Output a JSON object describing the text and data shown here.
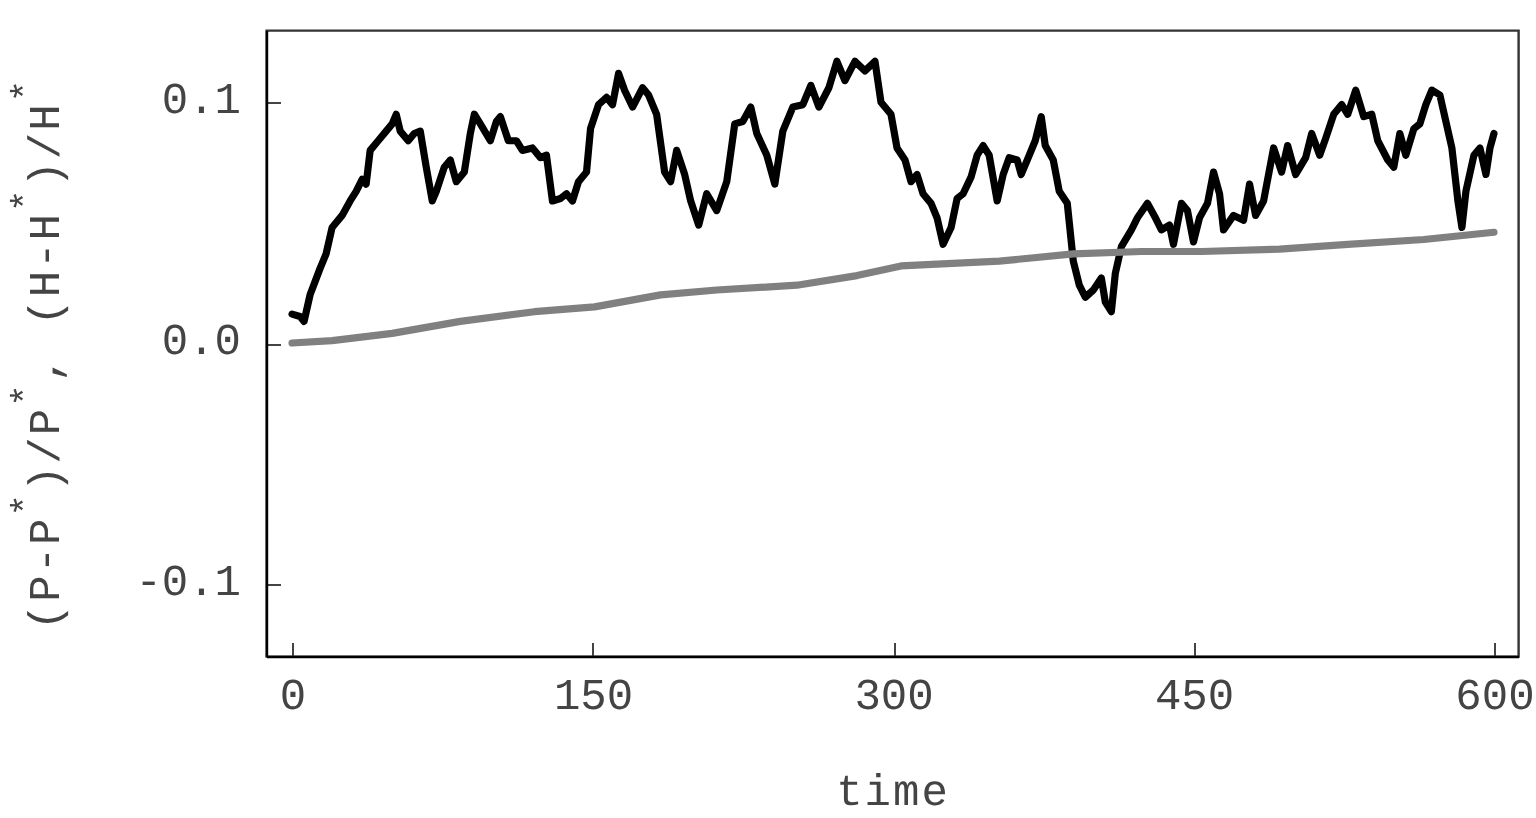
{
  "chart_data": {
    "type": "line",
    "xlabel": "time",
    "ylabel": "(P-P$^{*}$)/P$^{*}$, (H-H$^{*}$)/H$^{*}$",
    "xlim": [
      -13,
      612
    ],
    "ylim": [
      -0.13,
      0.13
    ],
    "xticks": [
      0,
      150,
      300,
      450,
      600
    ],
    "yticks": [
      -0.1,
      {
        "value": 0,
        "label": "0.0"
      },
      0.1
    ],
    "series": [
      {
        "color": "#000000",
        "x": [
          0,
          4,
          6,
          9,
          14,
          17,
          20,
          25,
          29,
          32,
          35,
          37,
          39,
          43,
          47,
          50,
          52,
          54,
          58,
          61,
          64,
          67,
          70,
          72,
          76,
          79,
          82,
          86,
          89,
          91,
          94,
          99,
          102,
          104,
          108,
          112,
          115,
          120,
          124,
          127,
          130,
          134,
          137,
          140,
          143,
          147,
          149,
          153,
          157,
          160,
          163,
          166,
          170,
          175,
          178,
          182,
          186,
          189,
          192,
          196,
          199,
          203,
          207,
          212,
          217,
          221,
          225,
          229,
          232,
          237,
          241,
          245,
          250,
          255,
          259,
          263,
          268,
          272,
          276,
          281,
          286,
          291,
          294,
          299,
          302,
          306,
          309,
          312,
          315,
          319,
          322,
          325,
          329,
          332,
          335,
          339,
          342,
          345,
          348,
          352,
          355,
          358,
          362,
          364,
          367,
          371,
          374,
          376,
          380,
          383,
          387,
          390,
          393,
          396,
          400,
          404,
          406,
          409,
          411,
          414,
          419,
          422,
          427,
          431,
          434,
          438,
          440,
          444,
          447,
          450,
          453,
          457,
          460,
          463,
          465,
          470,
          475,
          478,
          481,
          485,
          490,
          494,
          497,
          501,
          506,
          509,
          513,
          516,
          520,
          524,
          527,
          531,
          535,
          539,
          542,
          547,
          550,
          553,
          556,
          560,
          563,
          566,
          569,
          573,
          576,
          579,
          582,
          584,
          586,
          590,
          593,
          596,
          598,
          600
        ],
        "values": [
          0.012,
          0.011,
          0.009,
          0.02,
          0.031,
          0.037,
          0.048,
          0.053,
          0.059,
          0.063,
          0.068,
          0.066,
          0.08,
          0.084,
          0.088,
          0.091,
          0.095,
          0.088,
          0.084,
          0.087,
          0.088,
          0.073,
          0.059,
          0.063,
          0.073,
          0.076,
          0.067,
          0.071,
          0.087,
          0.095,
          0.091,
          0.084,
          0.092,
          0.094,
          0.084,
          0.084,
          0.08,
          0.081,
          0.077,
          0.078,
          0.059,
          0.06,
          0.062,
          0.059,
          0.067,
          0.071,
          0.089,
          0.099,
          0.102,
          0.099,
          0.112,
          0.105,
          0.098,
          0.106,
          0.103,
          0.095,
          0.071,
          0.067,
          0.08,
          0.07,
          0.059,
          0.049,
          0.062,
          0.055,
          0.067,
          0.091,
          0.092,
          0.098,
          0.087,
          0.078,
          0.066,
          0.088,
          0.098,
          0.099,
          0.107,
          0.098,
          0.106,
          0.117,
          0.109,
          0.117,
          0.113,
          0.117,
          0.1,
          0.095,
          0.081,
          0.076,
          0.067,
          0.07,
          0.062,
          0.058,
          0.052,
          0.041,
          0.048,
          0.06,
          0.062,
          0.069,
          0.078,
          0.082,
          0.078,
          0.059,
          0.07,
          0.077,
          0.076,
          0.07,
          0.076,
          0.084,
          0.094,
          0.082,
          0.076,
          0.063,
          0.058,
          0.034,
          0.024,
          0.019,
          0.022,
          0.027,
          0.017,
          0.013,
          0.029,
          0.04,
          0.047,
          0.052,
          0.058,
          0.052,
          0.047,
          0.049,
          0.041,
          0.058,
          0.055,
          0.042,
          0.052,
          0.058,
          0.071,
          0.062,
          0.047,
          0.053,
          0.051,
          0.066,
          0.053,
          0.059,
          0.081,
          0.071,
          0.082,
          0.07,
          0.077,
          0.087,
          0.078,
          0.085,
          0.095,
          0.099,
          0.095,
          0.105,
          0.094,
          0.095,
          0.084,
          0.076,
          0.073,
          0.087,
          0.078,
          0.089,
          0.091,
          0.099,
          0.105,
          0.103,
          0.092,
          0.081,
          0.059,
          0.048,
          0.063,
          0.078,
          0.081,
          0.07,
          0.081,
          0.087
        ]
      },
      {
        "color": "#808080",
        "x": [
          0,
          20,
          50,
          84,
          121,
          151,
          184,
          212,
          252,
          282,
          304,
          353,
          390,
          424,
          454,
          493,
          527,
          565,
          600
        ],
        "values": [
          0.0,
          0.001,
          0.004,
          0.009,
          0.013,
          0.015,
          0.02,
          0.022,
          0.024,
          0.028,
          0.032,
          0.034,
          0.037,
          0.038,
          0.038,
          0.039,
          0.041,
          0.043,
          0.046
        ]
      }
    ]
  }
}
